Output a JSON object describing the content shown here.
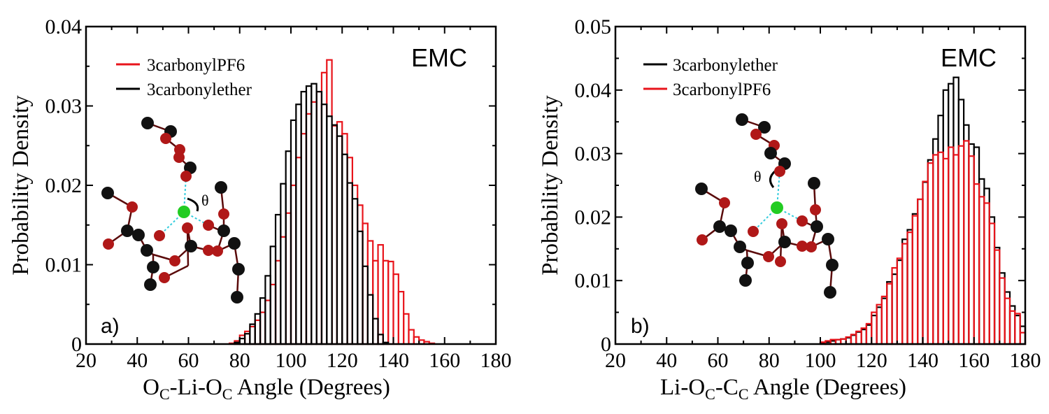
{
  "figure": {
    "panels": [
      {
        "id": "a",
        "panel_label": "a)",
        "tag": "EMC",
        "ylabel": "Probability Density",
        "xlabel": {
          "parts": [
            {
              "t": "O",
              "sub": false
            },
            {
              "t": "C",
              "sub": true
            },
            {
              "t": "-Li-O",
              "sub": false
            },
            {
              "t": "C",
              "sub": true
            },
            {
              "t": " Angle (Degrees)",
              "sub": false
            }
          ]
        },
        "theta_label": "θ"
      },
      {
        "id": "b",
        "panel_label": "b)",
        "tag": "EMC",
        "ylabel": "Probability Density",
        "xlabel": {
          "parts": [
            {
              "t": "Li-O",
              "sub": false
            },
            {
              "t": "C",
              "sub": true
            },
            {
              "t": "-C",
              "sub": false
            },
            {
              "t": "C",
              "sub": true
            },
            {
              "t": " Angle (Degrees)",
              "sub": false
            }
          ]
        },
        "theta_label": "θ"
      }
    ]
  },
  "colors": {
    "red": "#e8141b",
    "black": "#000000",
    "dark_red": "#8b0a0a",
    "green": "#22cc22",
    "cyan": "#33ccdd"
  },
  "chart_data": [
    {
      "type": "bar",
      "title": "",
      "xlabel": "OC-Li-OC Angle (Degrees)",
      "ylabel": "Probability Density",
      "xlim": [
        20,
        180
      ],
      "ylim": [
        0,
        0.04
      ],
      "xticks": [
        "20",
        "40",
        "60",
        "80",
        "100",
        "120",
        "140",
        "160",
        "180"
      ],
      "yticks": [
        "0",
        "0.01",
        "0.02",
        "0.03",
        "0.04"
      ],
      "bin_width": 2,
      "legend_position": "top-left",
      "series": [
        {
          "name": "3carbonylPF6",
          "color": "#e8141b",
          "bin_start": [
            76,
            78,
            80,
            82,
            84,
            86,
            88,
            90,
            92,
            94,
            96,
            98,
            100,
            102,
            104,
            106,
            108,
            110,
            112,
            114,
            116,
            118,
            120,
            122,
            124,
            126,
            128,
            130,
            132,
            134,
            136,
            138,
            140,
            142,
            144,
            146,
            148,
            150,
            152,
            154
          ],
          "values": [
            0.0001,
            0.0004,
            0.0011,
            0.0016,
            0.0022,
            0.003,
            0.004,
            0.0055,
            0.0075,
            0.0105,
            0.0135,
            0.0165,
            0.02,
            0.0235,
            0.0265,
            0.029,
            0.0305,
            0.0318,
            0.0342,
            0.0358,
            0.0275,
            0.028,
            0.0265,
            0.0235,
            0.02,
            0.0175,
            0.0152,
            0.013,
            0.0105,
            0.0125,
            0.0105,
            0.0104,
            0.0088,
            0.0066,
            0.0038,
            0.0018,
            0.0009,
            0.0005,
            0.0003,
            0.0001
          ]
        },
        {
          "name": "3carbonylether",
          "color": "#000000",
          "bin_start": [
            78,
            80,
            82,
            84,
            86,
            88,
            90,
            92,
            94,
            96,
            98,
            100,
            102,
            104,
            106,
            108,
            110,
            112,
            114,
            116,
            118,
            120,
            122,
            124,
            126,
            128,
            130,
            132,
            134,
            136
          ],
          "values": [
            0.0002,
            0.0007,
            0.0013,
            0.0025,
            0.0038,
            0.0058,
            0.0086,
            0.0123,
            0.0163,
            0.0202,
            0.0243,
            0.0282,
            0.0302,
            0.0318,
            0.0325,
            0.0328,
            0.0318,
            0.0302,
            0.0287,
            0.0276,
            0.0262,
            0.0239,
            0.0203,
            0.0183,
            0.0142,
            0.0098,
            0.0062,
            0.0032,
            0.0012,
            0.0002
          ]
        }
      ]
    },
    {
      "type": "bar",
      "title": "",
      "xlabel": "Li-OC-CC Angle (Degrees)",
      "ylabel": "Probability Density",
      "xlim": [
        20,
        180
      ],
      "ylim": [
        0,
        0.05
      ],
      "xticks": [
        "20",
        "40",
        "60",
        "80",
        "100",
        "120",
        "140",
        "160",
        "180"
      ],
      "yticks": [
        "0",
        "0.01",
        "0.02",
        "0.03",
        "0.04",
        "0.05"
      ],
      "bin_width": 2,
      "legend_position": "top-left",
      "series": [
        {
          "name": "3carbonylether",
          "color": "#000000",
          "bin_start": [
            100,
            102,
            104,
            106,
            108,
            110,
            112,
            114,
            116,
            118,
            120,
            122,
            124,
            126,
            128,
            130,
            132,
            134,
            136,
            138,
            140,
            142,
            144,
            146,
            148,
            150,
            152,
            154,
            156,
            158,
            160,
            162,
            164,
            166,
            168,
            170,
            172,
            174,
            176,
            178
          ],
          "values": [
            0.0002,
            0.0003,
            0.0005,
            0.0007,
            0.0008,
            0.001,
            0.0014,
            0.0019,
            0.0023,
            0.003,
            0.0045,
            0.0058,
            0.0072,
            0.0098,
            0.011,
            0.0132,
            0.0165,
            0.018,
            0.0205,
            0.0228,
            0.0255,
            0.029,
            0.0323,
            0.036,
            0.04,
            0.041,
            0.042,
            0.0385,
            0.0345,
            0.0315,
            0.031,
            0.026,
            0.0245,
            0.02,
            0.0152,
            0.0112,
            0.0082,
            0.006,
            0.0045,
            0.0028
          ]
        },
        {
          "name": "3carbonylPF6",
          "color": "#e8141b",
          "bin_start": [
            100,
            102,
            104,
            106,
            108,
            110,
            112,
            114,
            116,
            118,
            120,
            122,
            124,
            126,
            128,
            130,
            132,
            134,
            136,
            138,
            140,
            142,
            144,
            146,
            148,
            150,
            152,
            154,
            156,
            158,
            160,
            162,
            164,
            166,
            168,
            170,
            172,
            174,
            176,
            178
          ],
          "values": [
            0.0003,
            0.0005,
            0.0007,
            0.0007,
            0.0008,
            0.0011,
            0.0015,
            0.002,
            0.0025,
            0.0032,
            0.005,
            0.0062,
            0.0075,
            0.0095,
            0.012,
            0.0135,
            0.0158,
            0.0176,
            0.0202,
            0.0228,
            0.0256,
            0.0285,
            0.0298,
            0.0302,
            0.0292,
            0.031,
            0.0298,
            0.0312,
            0.032,
            0.0296,
            0.0252,
            0.0232,
            0.0222,
            0.019,
            0.0148,
            0.0104,
            0.0072,
            0.0052,
            0.0048,
            0.0018
          ]
        }
      ]
    }
  ]
}
